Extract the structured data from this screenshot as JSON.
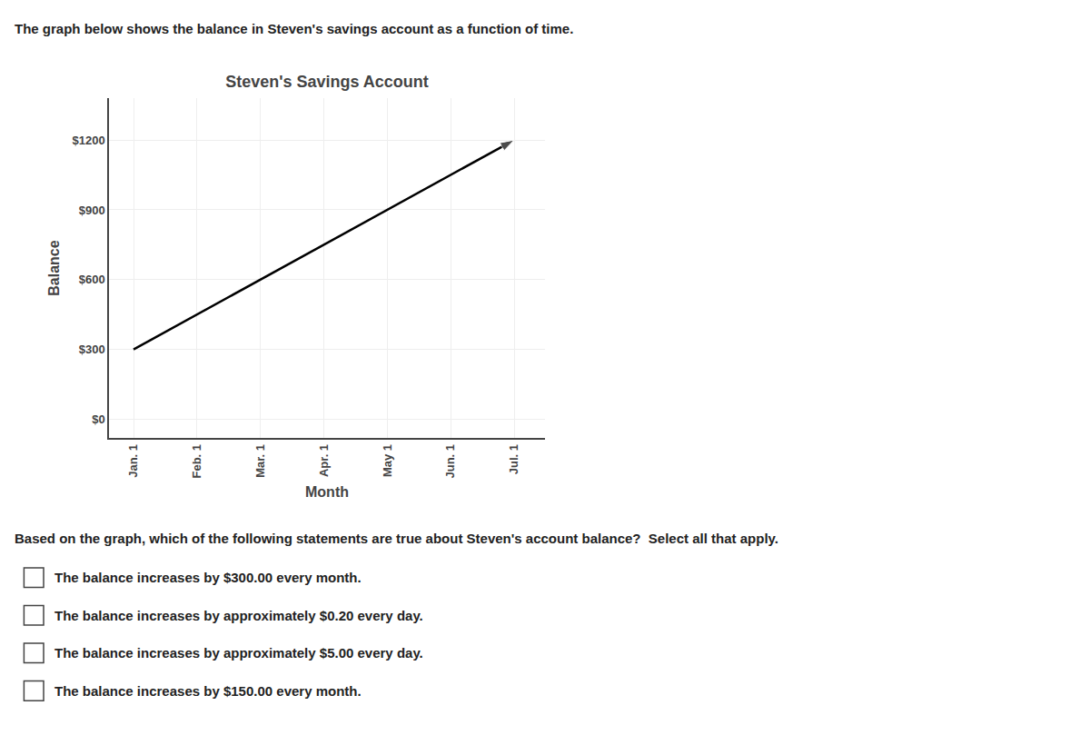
{
  "chart_data": {
    "type": "line",
    "title": "Steven's Savings Account",
    "subtitle": "The graph below shows the balance in Steven's savings account as a function of time.",
    "xlabel": "Month",
    "ylabel": "Balance",
    "categories": [
      "Jan. 1",
      "Feb. 1",
      "Mar. 1",
      "Apr. 1",
      "May 1",
      "Jun. 1",
      "Jul. 1"
    ],
    "series": [
      {
        "x": [
          "Jan. 1",
          "Jul. 1"
        ],
        "values": [
          300,
          1200
        ],
        "color": "#000000",
        "marker": "arrow",
        "line_style": "solid"
      }
    ],
    "ylim": [
      -80,
      1380
    ],
    "yticks": [
      {
        "value": 0,
        "label": "$0"
      },
      {
        "value": 300,
        "label": "$300"
      },
      {
        "value": 600,
        "label": "$600"
      },
      {
        "value": 900,
        "label": "$900"
      },
      {
        "value": 1200,
        "label": "$1200"
      }
    ],
    "grid": true,
    "annotations": [
      "Based on the graph, which of the following statements are true about Steven's account balance?  Select all that apply.",
      "The balance increases by $300.00 every month.",
      "The balance increases by approximately $0.20 every day.",
      "The balance increases by approximately $5.00 every day.",
      "The balance increases by $150.00 every month."
    ]
  }
}
